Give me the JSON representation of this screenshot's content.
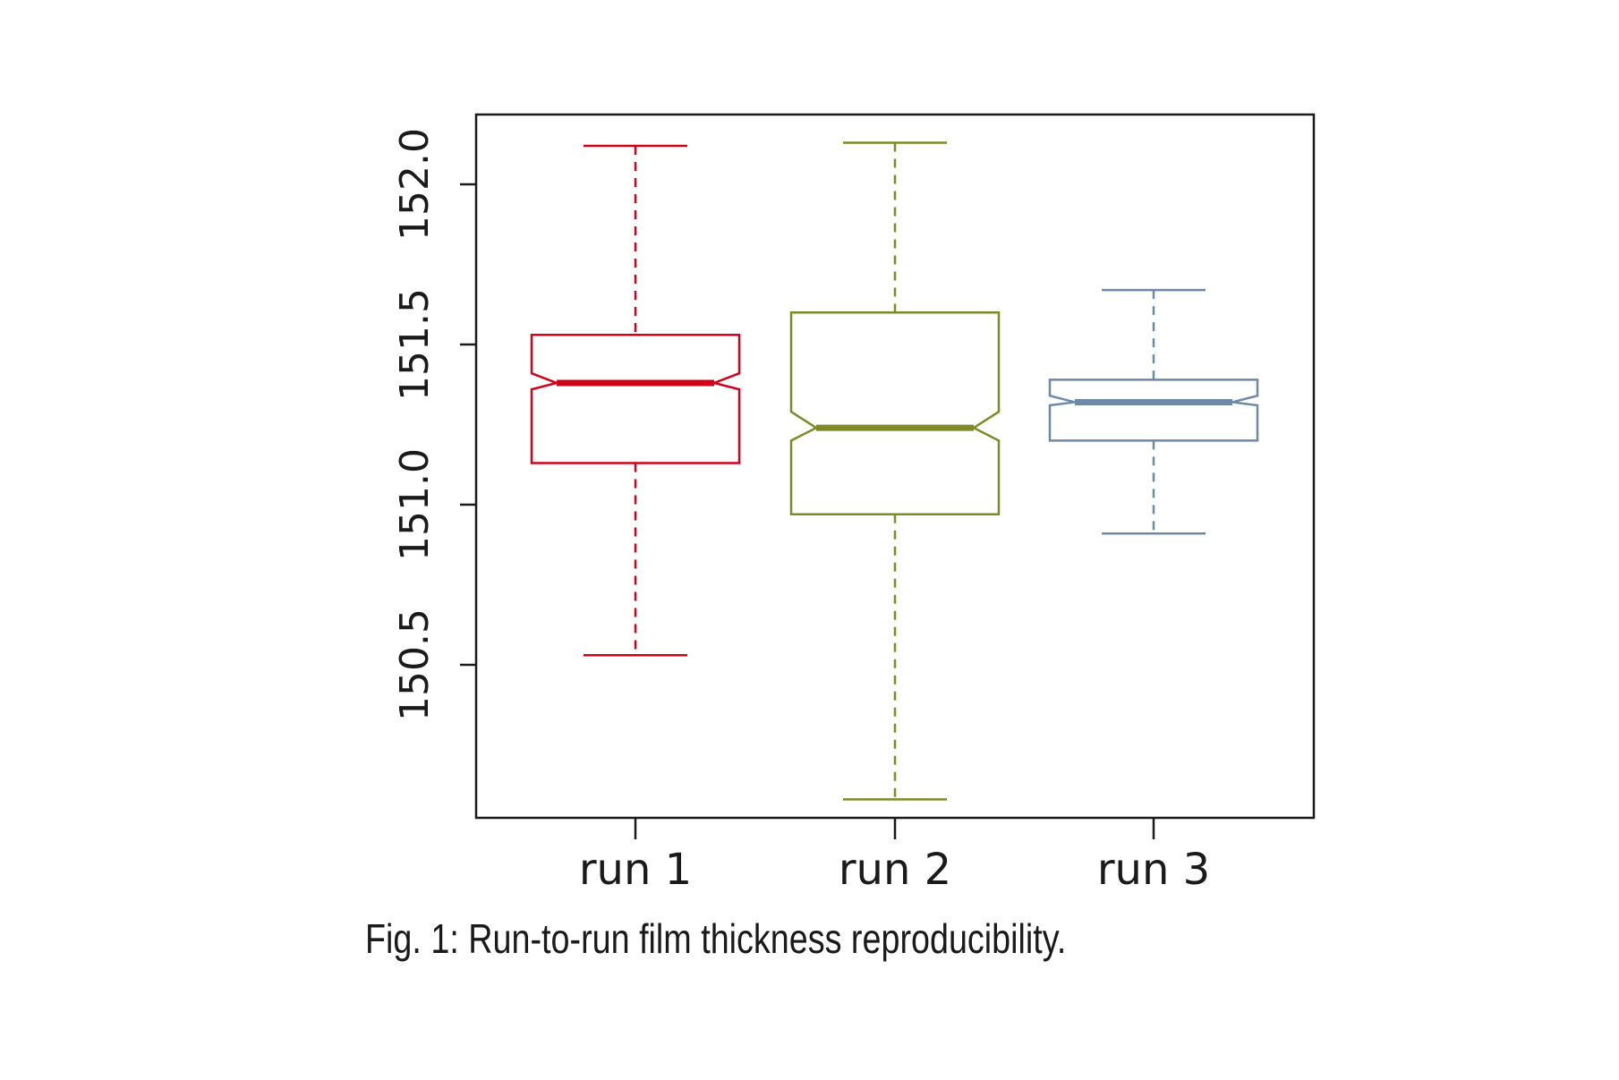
{
  "chart_data": {
    "type": "boxplot",
    "notched": true,
    "title": "",
    "xlabel": "",
    "ylabel": "",
    "ylim": [
      149.94,
      152.22
    ],
    "yticks": [
      150.5,
      151.0,
      151.5,
      152.0
    ],
    "ytick_labels": [
      "150.5",
      "151.0",
      "151.5",
      "152.0"
    ],
    "categories": [
      "run 1",
      "run 2",
      "run 3"
    ],
    "boxes": [
      {
        "whisker_low": 150.53,
        "q1": 151.13,
        "median": 151.38,
        "q3": 151.53,
        "whisker_high": 152.12,
        "notch_low": 151.36,
        "notch_high": 151.41,
        "color": "#d0021b"
      },
      {
        "whisker_low": 150.08,
        "q1": 150.97,
        "median": 151.24,
        "q3": 151.6,
        "whisker_high": 152.13,
        "notch_low": 151.2,
        "notch_high": 151.29,
        "color": "#7e8b25"
      },
      {
        "whisker_low": 150.91,
        "q1": 151.2,
        "median": 151.32,
        "q3": 151.39,
        "whisker_high": 151.67,
        "notch_low": 151.31,
        "notch_high": 151.34,
        "color": "#6c8aa8"
      }
    ],
    "grid": false,
    "legend": "none"
  },
  "caption": {
    "text": "Fig. 1:  Run-to-run film thickness reproducibility."
  }
}
